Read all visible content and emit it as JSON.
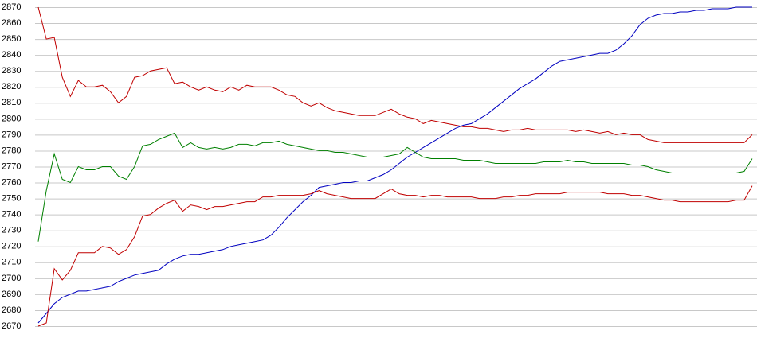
{
  "chart_data": {
    "type": "line",
    "categories": [
      null,
      null,
      null,
      null,
      null,
      null,
      null,
      null,
      null,
      null,
      null,
      null,
      null,
      null,
      null,
      null,
      null,
      null,
      null,
      null,
      null,
      null,
      null,
      null,
      null,
      null,
      null,
      null,
      null,
      null,
      null,
      null,
      null,
      null,
      null,
      null,
      null,
      null,
      null,
      null,
      null,
      null,
      null,
      null,
      null,
      null,
      null,
      null,
      null,
      null,
      null,
      null,
      null,
      null,
      null,
      null,
      null,
      null,
      null,
      null,
      null,
      null,
      null,
      null,
      null,
      null,
      null,
      null,
      null,
      null,
      null,
      null,
      null,
      null,
      null,
      null,
      null,
      null,
      null,
      null,
      null,
      null,
      null,
      null,
      null,
      null,
      null,
      null,
      null,
      null
    ],
    "ylim": [
      2670,
      2870
    ],
    "yticks": [
      2670,
      2680,
      2690,
      2700,
      2710,
      2720,
      2730,
      2740,
      2750,
      2760,
      2770,
      2780,
      2790,
      2800,
      2810,
      2820,
      2830,
      2840,
      2850,
      2860,
      2870
    ],
    "grid": true,
    "series": [
      {
        "color": "#0000c0",
        "values": [
          2672,
          2678,
          2684,
          2688,
          2690,
          2692,
          2692,
          2693,
          2694,
          2695,
          2698,
          2700,
          2702,
          2703,
          2704,
          2705,
          2709,
          2712,
          2714,
          2715,
          2715,
          2716,
          2717,
          2718,
          2720,
          2721,
          2722,
          2723,
          2724,
          2727,
          2732,
          2738,
          2743,
          2748,
          2752,
          2757,
          2758,
          2759,
          2760,
          2760,
          2761,
          2761,
          2763,
          2765,
          2768,
          2772,
          2776,
          2779,
          2782,
          2785,
          2788,
          2791,
          2794,
          2796,
          2797,
          2800,
          2803,
          2807,
          2811,
          2815,
          2819,
          2822,
          2825,
          2829,
          2833,
          2836,
          2837,
          2838,
          2839,
          2840,
          2841,
          2841,
          2843,
          2847,
          2852,
          2859,
          2863,
          2865,
          2866,
          2866,
          2867,
          2867,
          2868,
          2868,
          2869,
          2869,
          2869,
          2870,
          2870,
          2870
        ]
      },
      {
        "color": "#c00000",
        "values": [
          2870,
          2850,
          2851,
          2826,
          2814,
          2824,
          2820,
          2820,
          2821,
          2817,
          2810,
          2814,
          2826,
          2827,
          2830,
          2831,
          2832,
          2822,
          2823,
          2820,
          2818,
          2820,
          2818,
          2817,
          2820,
          2818,
          2821,
          2820,
          2820,
          2820,
          2818,
          2815,
          2814,
          2810,
          2808,
          2810,
          2807,
          2805,
          2804,
          2803,
          2802,
          2802,
          2802,
          2804,
          2806,
          2803,
          2801,
          2800,
          2797,
          2799,
          2798,
          2797,
          2796,
          2795,
          2795,
          2794,
          2794,
          2793,
          2792,
          2793,
          2793,
          2794,
          2793,
          2793,
          2793,
          2793,
          2793,
          2792,
          2793,
          2792,
          2791,
          2792,
          2790,
          2791,
          2790,
          2790,
          2787,
          2786,
          2785,
          2785,
          2785,
          2785,
          2785,
          2785,
          2785,
          2785,
          2785,
          2785,
          2785,
          2790
        ]
      },
      {
        "color": "#008000",
        "values": [
          2723,
          2755,
          2778,
          2762,
          2760,
          2770,
          2768,
          2768,
          2770,
          2770,
          2764,
          2762,
          2770,
          2783,
          2784,
          2787,
          2789,
          2791,
          2782,
          2785,
          2782,
          2781,
          2782,
          2781,
          2782,
          2784,
          2784,
          2783,
          2785,
          2785,
          2786,
          2784,
          2783,
          2782,
          2781,
          2780,
          2780,
          2779,
          2779,
          2778,
          2777,
          2776,
          2776,
          2776,
          2777,
          2778,
          2782,
          2779,
          2776,
          2775,
          2775,
          2775,
          2775,
          2774,
          2774,
          2774,
          2773,
          2772,
          2772,
          2772,
          2772,
          2772,
          2772,
          2773,
          2773,
          2773,
          2774,
          2773,
          2773,
          2772,
          2772,
          2772,
          2772,
          2772,
          2771,
          2771,
          2770,
          2768,
          2767,
          2766,
          2766,
          2766,
          2766,
          2766,
          2766,
          2766,
          2766,
          2766,
          2767,
          2775
        ]
      },
      {
        "color": "#c00000",
        "values": [
          2670,
          2672,
          2706,
          2699,
          2705,
          2716,
          2716,
          2716,
          2720,
          2719,
          2715,
          2718,
          2726,
          2739,
          2740,
          2744,
          2747,
          2749,
          2742,
          2746,
          2745,
          2743,
          2745,
          2745,
          2746,
          2747,
          2748,
          2748,
          2751,
          2751,
          2752,
          2752,
          2752,
          2752,
          2753,
          2755,
          2753,
          2752,
          2751,
          2750,
          2750,
          2750,
          2750,
          2753,
          2756,
          2753,
          2752,
          2752,
          2751,
          2752,
          2752,
          2751,
          2751,
          2751,
          2751,
          2750,
          2750,
          2750,
          2751,
          2751,
          2752,
          2752,
          2753,
          2753,
          2753,
          2753,
          2754,
          2754,
          2754,
          2754,
          2754,
          2753,
          2753,
          2753,
          2752,
          2752,
          2751,
          2750,
          2749,
          2749,
          2748,
          2748,
          2748,
          2748,
          2748,
          2748,
          2748,
          2749,
          2749,
          2758
        ]
      }
    ]
  }
}
